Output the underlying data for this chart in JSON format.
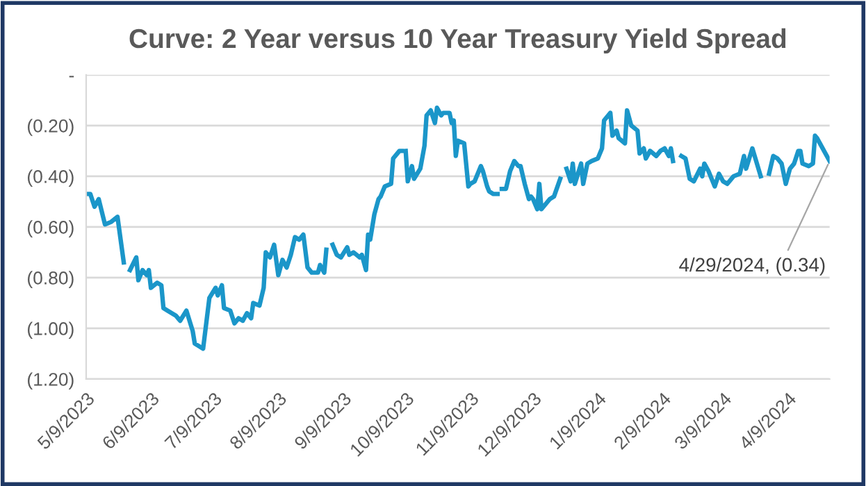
{
  "chart_data": {
    "type": "line",
    "title": "Curve: 2 Year versus 10 Year Treasury Yield Spread",
    "x": [
      "2023-05-09",
      "2023-05-11",
      "2023-05-13",
      "2023-05-15",
      "2023-05-18",
      "2023-05-21",
      "2023-05-24",
      "2023-05-27",
      "2023-05-28",
      "2023-05-30",
      "2023-06-02",
      "2023-06-03",
      "2023-06-05",
      "2023-06-07",
      "2023-06-08",
      "2023-06-09",
      "2023-06-12",
      "2023-06-14",
      "2023-06-15",
      "2023-06-17",
      "2023-06-21",
      "2023-06-23",
      "2023-06-26",
      "2023-06-29",
      "2023-06-30",
      "2023-07-04",
      "2023-07-07",
      "2023-07-10",
      "2023-07-11",
      "2023-07-13",
      "2023-07-14",
      "2023-07-17",
      "2023-07-19",
      "2023-07-21",
      "2023-07-23",
      "2023-07-25",
      "2023-07-27",
      "2023-07-28",
      "2023-07-31",
      "2023-08-02",
      "2023-08-03",
      "2023-08-05",
      "2023-08-07",
      "2023-08-09",
      "2023-08-11",
      "2023-08-13",
      "2023-08-15",
      "2023-08-17",
      "2023-08-19",
      "2023-08-21",
      "2023-08-23",
      "2023-08-25",
      "2023-08-28",
      "2023-08-29",
      "2023-08-31",
      "2023-09-01",
      "2023-09-02",
      "2023-09-04",
      "2023-09-06",
      "2023-09-08",
      "2023-09-11",
      "2023-09-12",
      "2023-09-14",
      "2023-09-17",
      "2023-09-18",
      "2023-09-20",
      "2023-09-21",
      "2023-09-22",
      "2023-09-24",
      "2023-09-26",
      "2023-09-27",
      "2023-09-29",
      "2023-10-02",
      "2023-10-03",
      "2023-10-06",
      "2023-10-07",
      "2023-10-08",
      "2023-10-09",
      "2023-10-10",
      "2023-10-12",
      "2023-10-13",
      "2023-10-16",
      "2023-10-18",
      "2023-10-19",
      "2023-10-21",
      "2023-10-23",
      "2023-10-24",
      "2023-10-26",
      "2023-10-27",
      "2023-10-30",
      "2023-10-31",
      "2023-11-01",
      "2023-11-02",
      "2023-11-03",
      "2023-11-06",
      "2023-11-08",
      "2023-11-09",
      "2023-11-11",
      "2023-11-14",
      "2023-11-15",
      "2023-11-17",
      "2023-11-18",
      "2023-11-20",
      "2023-11-22",
      "2023-11-23",
      "2023-11-24",
      "2023-11-26",
      "2023-11-28",
      "2023-11-30",
      "2023-12-02",
      "2023-12-03",
      "2023-12-05",
      "2023-12-07",
      "2023-12-08",
      "2023-12-09",
      "2023-12-11",
      "2023-12-12",
      "2023-12-13",
      "2023-12-15",
      "2023-12-17",
      "2023-12-19",
      "2023-12-22",
      "2023-12-24",
      "2023-12-25",
      "2023-12-27",
      "2023-12-28",
      "2023-12-29",
      "2024-01-01",
      "2024-01-02",
      "2024-01-04",
      "2024-01-06",
      "2024-01-09",
      "2024-01-11",
      "2024-01-12",
      "2024-01-15",
      "2024-01-16",
      "2024-01-18",
      "2024-01-19",
      "2024-01-22",
      "2024-01-23",
      "2024-01-25",
      "2024-01-28",
      "2024-01-29",
      "2024-01-31",
      "2024-02-01",
      "2024-02-03",
      "2024-02-06",
      "2024-02-08",
      "2024-02-10",
      "2024-02-12",
      "2024-02-13",
      "2024-02-14",
      "2024-02-16",
      "2024-02-18",
      "2024-02-20",
      "2024-02-22",
      "2024-02-24",
      "2024-02-27",
      "2024-02-28",
      "2024-02-29",
      "2024-03-02",
      "2024-03-05",
      "2024-03-07",
      "2024-03-09",
      "2024-03-11",
      "2024-03-14",
      "2024-03-17",
      "2024-03-19",
      "2024-03-20",
      "2024-03-23",
      "2024-03-27",
      "2024-03-29",
      "2024-03-31",
      "2024-04-02",
      "2024-04-04",
      "2024-04-06",
      "2024-04-08",
      "2024-04-10",
      "2024-04-12",
      "2024-04-14",
      "2024-04-15",
      "2024-04-16",
      "2024-04-19",
      "2024-04-21",
      "2024-04-22",
      "2024-04-23",
      "2024-04-29"
    ],
    "series": [
      {
        "color": "#1b96c9",
        "values": [
          -0.47,
          -0.47,
          -0.52,
          -0.49,
          -0.59,
          -0.58,
          -0.56,
          -0.74,
          null,
          -0.77,
          -0.72,
          -0.81,
          -0.77,
          -0.79,
          -0.77,
          -0.84,
          -0.82,
          -0.83,
          -0.92,
          -0.93,
          -0.95,
          -0.97,
          -0.93,
          -1.01,
          -1.06,
          -1.08,
          -0.88,
          -0.84,
          -0.87,
          -0.83,
          -0.92,
          -0.93,
          -0.98,
          -0.96,
          -0.97,
          -0.94,
          -0.96,
          -0.9,
          -0.91,
          -0.84,
          -0.7,
          -0.72,
          -0.67,
          -0.79,
          -0.73,
          -0.76,
          -0.71,
          -0.64,
          -0.65,
          -0.63,
          -0.76,
          -0.78,
          -0.78,
          -0.75,
          -0.78,
          -0.69,
          null,
          -0.67,
          -0.71,
          -0.72,
          -0.68,
          -0.71,
          -0.7,
          -0.72,
          -0.71,
          -0.77,
          -0.63,
          -0.65,
          -0.55,
          -0.49,
          -0.48,
          -0.44,
          -0.43,
          -0.33,
          -0.3,
          -0.3,
          null,
          -0.3,
          -0.42,
          -0.36,
          -0.41,
          -0.37,
          -0.28,
          -0.16,
          -0.14,
          -0.19,
          -0.13,
          -0.16,
          -0.15,
          -0.15,
          -0.19,
          -0.18,
          -0.32,
          -0.26,
          -0.27,
          -0.44,
          -0.43,
          -0.42,
          -0.36,
          -0.38,
          -0.44,
          -0.46,
          -0.47,
          -0.47,
          null,
          -0.45,
          -0.45,
          -0.38,
          -0.34,
          -0.36,
          -0.36,
          -0.43,
          -0.49,
          -0.48,
          -0.49,
          -0.53,
          -0.43,
          -0.53,
          -0.51,
          -0.49,
          -0.48,
          -0.41,
          null,
          -0.37,
          -0.42,
          -0.35,
          -0.43,
          -0.35,
          -0.43,
          -0.35,
          -0.34,
          -0.33,
          -0.29,
          -0.18,
          -0.15,
          -0.24,
          -0.22,
          -0.25,
          -0.27,
          -0.14,
          -0.2,
          -0.22,
          -0.31,
          -0.29,
          -0.33,
          -0.3,
          -0.32,
          -0.3,
          -0.29,
          -0.32,
          -0.29,
          -0.34,
          null,
          -0.32,
          -0.33,
          -0.41,
          -0.42,
          -0.37,
          -0.4,
          -0.35,
          -0.38,
          -0.44,
          -0.39,
          -0.42,
          -0.43,
          -0.4,
          -0.39,
          -0.32,
          -0.37,
          -0.29,
          -0.4,
          null,
          -0.39,
          -0.32,
          -0.33,
          -0.35,
          -0.43,
          -0.37,
          -0.35,
          -0.3,
          -0.3,
          -0.35,
          -0.36,
          -0.35,
          -0.24,
          -0.25,
          -0.34
        ]
      }
    ],
    "xlim": [
      "2023-05-09",
      "2024-04-29"
    ],
    "xticks": [
      {
        "value": "2023-05-09",
        "label": "5/9/2023"
      },
      {
        "value": "2023-06-09",
        "label": "6/9/2023"
      },
      {
        "value": "2023-07-09",
        "label": "7/9/2023"
      },
      {
        "value": "2023-08-09",
        "label": "8/9/2023"
      },
      {
        "value": "2023-09-09",
        "label": "9/9/2023"
      },
      {
        "value": "2023-10-09",
        "label": "10/9/2023"
      },
      {
        "value": "2023-11-09",
        "label": "11/9/2023"
      },
      {
        "value": "2023-12-09",
        "label": "12/9/2023"
      },
      {
        "value": "2024-01-09",
        "label": "1/9/2024"
      },
      {
        "value": "2024-02-09",
        "label": "2/9/2024"
      },
      {
        "value": "2024-03-09",
        "label": "3/9/2024"
      },
      {
        "value": "2024-04-09",
        "label": "4/9/2024"
      }
    ],
    "ylim": [
      -1.2,
      0
    ],
    "yticks": [
      {
        "value": 0,
        "label": "-"
      },
      {
        "value": -0.2,
        "label": "(0.20)"
      },
      {
        "value": -0.4,
        "label": "(0.40)"
      },
      {
        "value": -0.6,
        "label": "(0.60)"
      },
      {
        "value": -0.8,
        "label": "(0.80)"
      },
      {
        "value": -1.0,
        "label": "(1.00)"
      },
      {
        "value": -1.2,
        "label": "(1.20)"
      }
    ],
    "grid": "y",
    "marker": "none",
    "line_style": "solid",
    "annotations": [
      {
        "text": "4/29/2024, (0.34)",
        "x": "2024-04-29",
        "y": -0.34
      }
    ]
  }
}
